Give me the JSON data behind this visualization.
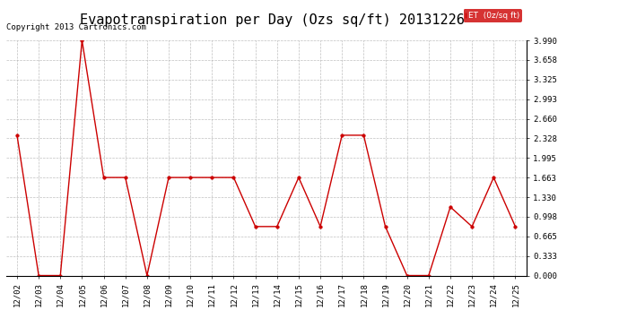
{
  "title": "Evapotranspiration per Day (Ozs sq/ft) 20131226",
  "copyright": "Copyright 2013 Cartronics.com",
  "legend_label": "ET  (0z/sq ft)",
  "dates": [
    "12/02",
    "12/03",
    "12/04",
    "12/05",
    "12/06",
    "12/07",
    "12/08",
    "12/09",
    "12/10",
    "12/11",
    "12/12",
    "12/13",
    "12/14",
    "12/15",
    "12/16",
    "12/17",
    "12/18",
    "12/19",
    "12/20",
    "12/21",
    "12/22",
    "12/23",
    "12/24",
    "12/25"
  ],
  "values": [
    2.38,
    0.0,
    0.0,
    3.99,
    1.663,
    1.663,
    0.0,
    1.663,
    1.663,
    1.663,
    1.663,
    0.831,
    0.831,
    1.663,
    0.831,
    2.38,
    2.38,
    0.831,
    0.0,
    0.0,
    1.163,
    0.831,
    1.663,
    0.831
  ],
  "line_color": "#cc0000",
  "marker_color": "#cc0000",
  "bg_color": "#ffffff",
  "grid_color": "#b0b0b0",
  "yticks": [
    0.0,
    0.333,
    0.665,
    0.998,
    1.33,
    1.663,
    1.995,
    2.328,
    2.66,
    2.993,
    3.325,
    3.658,
    3.99
  ],
  "ylim": [
    0.0,
    3.99
  ],
  "title_fontsize": 11,
  "copyright_fontsize": 6.5,
  "tick_fontsize": 6.5,
  "legend_bg": "#cc0000",
  "legend_text_color": "#ffffff"
}
